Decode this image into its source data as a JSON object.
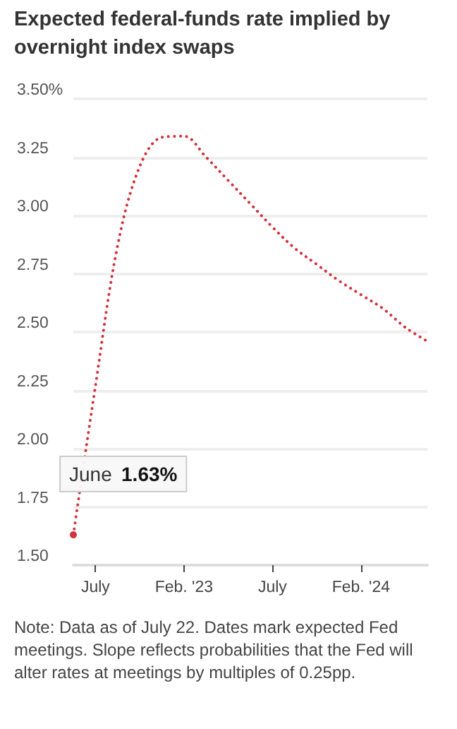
{
  "chart_data": {
    "type": "line",
    "title": "Expected federal-funds rate implied by overnight index swaps",
    "categories": [
      null,
      "July",
      null,
      null,
      null,
      "Feb. '23",
      null,
      null,
      null,
      "July",
      null,
      null,
      null,
      "Feb. '24",
      null,
      null,
      null
    ],
    "series": [
      {
        "color": "#d0343c",
        "values": [
          1.63,
          2.27,
          2.87,
          3.21,
          3.335,
          3.34,
          3.25,
          3.15,
          3.05,
          2.95,
          2.86,
          2.79,
          2.72,
          2.66,
          2.6,
          2.52,
          2.46
        ]
      }
    ],
    "ylim": [
      1.5,
      3.5
    ],
    "yticks": [
      {
        "value": 1.5,
        "label": "1.50"
      },
      {
        "value": 1.75,
        "label": "1.75"
      },
      {
        "value": 2,
        "label": "2.00"
      },
      {
        "value": 2.25,
        "label": "2.25"
      },
      {
        "value": 2.5,
        "label": "2.50"
      },
      {
        "value": 2.75,
        "label": "2.75"
      },
      {
        "value": 3,
        "label": "3.00"
      },
      {
        "value": 3.25,
        "label": "3.25"
      },
      {
        "value": 3.5,
        "label": "3.50%"
      }
    ],
    "grid": "y",
    "marker": "none",
    "line_style": "dotted",
    "annotations": [
      "June 1.63%",
      "Note: Data as of July 22. Dates mark expected Fed meetings. Slope reflects probabilities that the Fed will alter rates at meetings by multiples of 0.25pp."
    ]
  }
}
